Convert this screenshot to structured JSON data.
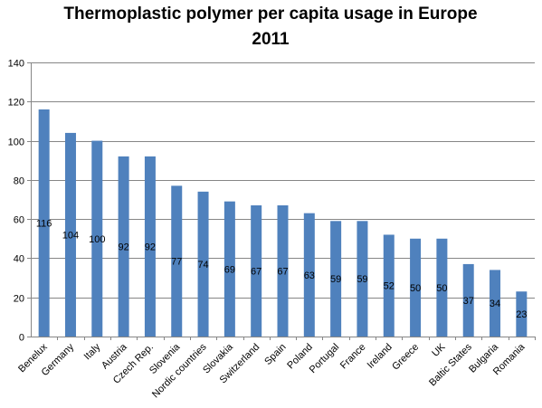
{
  "chart_data": {
    "type": "bar",
    "title_lines": [
      "Thermoplastic polymer per capita usage in Europe",
      "2011"
    ],
    "xlabel": "",
    "ylabel": "",
    "categories": [
      "Benelux",
      "Germany",
      "Italy",
      "Austria",
      "Czech Rep.",
      "Slovenia",
      "Nordic countries",
      "Slovakia",
      "Switzerland",
      "Spain",
      "Poland",
      "Portugal",
      "France",
      "Ireland",
      "Greece",
      "UK",
      "Baltic States",
      "Bulgaria",
      "Romania"
    ],
    "values": [
      116,
      104,
      100,
      92,
      92,
      77,
      74,
      69,
      67,
      67,
      63,
      59,
      59,
      52,
      50,
      50,
      37,
      34,
      23
    ],
    "value_labels": [
      "116",
      "104",
      "100",
      "92",
      "92",
      "77",
      "74",
      "69",
      "67",
      "67",
      "63",
      "59",
      "59",
      "52",
      "50",
      "50",
      "37",
      "34",
      "23"
    ],
    "ylim": [
      0,
      140
    ],
    "y_ticks": [
      "0",
      "20",
      "40",
      "60",
      "80",
      "100",
      "120",
      "140"
    ],
    "grid": true,
    "legend": "none",
    "bar_color": "#4F81BD",
    "grid_color": "#868686"
  }
}
